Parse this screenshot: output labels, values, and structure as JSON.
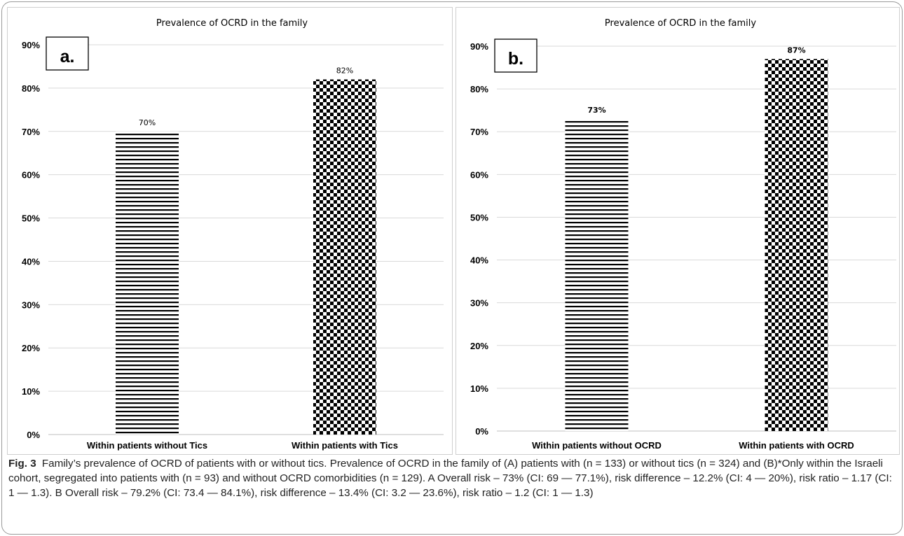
{
  "chart_data": [
    {
      "type": "bar",
      "panel_label": "a.",
      "title": "Prevalence of OCRD in the family",
      "xlabel": "",
      "ylabel": "",
      "categories": [
        "Within patients without Tics",
        "Within patients with Tics"
      ],
      "values": [
        70,
        82
      ],
      "data_labels": [
        "70%",
        "82%"
      ],
      "patterns": [
        "horizontal-stripes",
        "checkerboard"
      ],
      "ylim": [
        0,
        90
      ],
      "yticks": [
        "0%",
        "10%",
        "20%",
        "30%",
        "40%",
        "50%",
        "60%",
        "70%",
        "80%",
        "90%"
      ],
      "grid": true,
      "legend": "none"
    },
    {
      "type": "bar",
      "panel_label": "b.",
      "title": "Prevalence of OCRD in the family",
      "xlabel": "",
      "ylabel": "",
      "categories": [
        "Within patients without OCRD",
        "Within patients with OCRD"
      ],
      "values": [
        73,
        87
      ],
      "data_labels": [
        "73%",
        "87%"
      ],
      "patterns": [
        "horizontal-stripes",
        "checkerboard"
      ],
      "ylim": [
        0,
        90
      ],
      "yticks": [
        "0%",
        "10%",
        "20%",
        "30%",
        "40%",
        "50%",
        "60%",
        "70%",
        "80%",
        "90%"
      ],
      "grid": true,
      "legend": "none"
    }
  ],
  "caption": {
    "fig_label": "Fig. 3",
    "text": "Family’s prevalence of OCRD of patients with or without tics. Prevalence of OCRD in the family of (A) patients with (n = 133) or without tics (n = 324) and (B)*Only within the Israeli cohort, segregated into patients with (n = 93) and without OCRD comorbidities (n = 129). A Overall risk – 73% (CI: 69 — 77.1%), risk difference – 12.2% (CI: 4 — 20%), risk ratio – 1.17 (CI: 1 — 1.3). B Overall risk – 79.2% (CI: 73.4 — 84.1%), risk difference – 13.4% (CI: 3.2 — 23.6%), risk ratio – 1.2 (CI: 1 — 1.3)"
  },
  "colors": {
    "bar_fill": "#000000",
    "grid": "#d9d9d9",
    "axis_text": "#000000"
  }
}
